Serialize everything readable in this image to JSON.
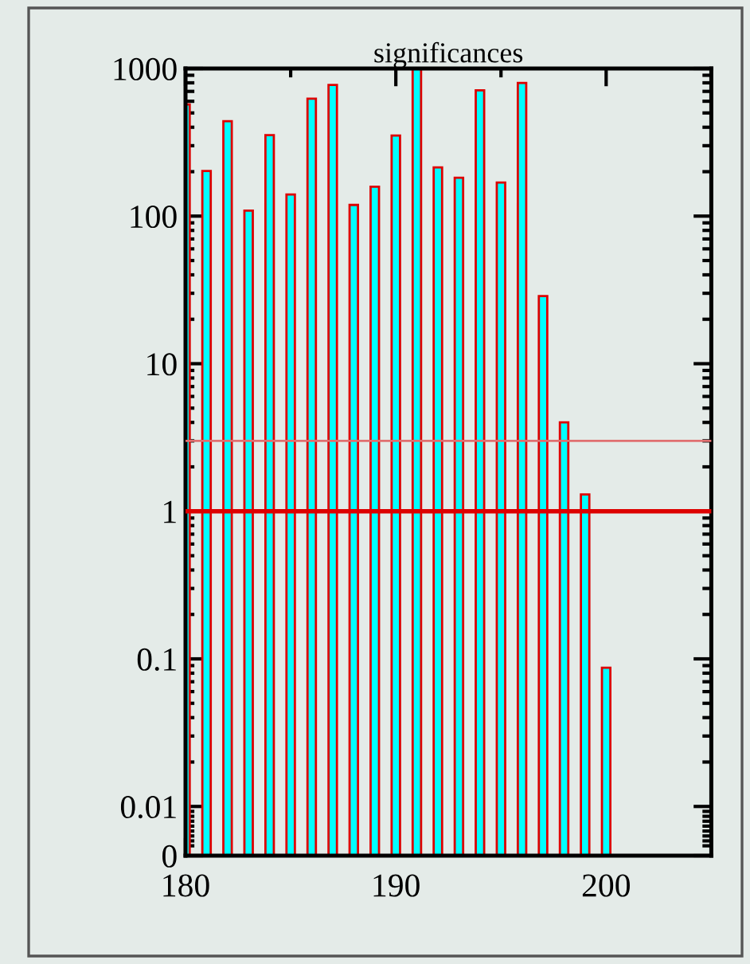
{
  "chart_data": {
    "type": "bar",
    "title": "significances",
    "x": [
      180,
      181,
      182,
      183,
      184,
      185,
      186,
      187,
      188,
      189,
      190,
      191,
      192,
      193,
      194,
      195,
      196,
      197,
      198,
      199,
      200
    ],
    "series": [
      {
        "color": "#00ffff",
        "values": [
          570,
          202,
          440,
          109,
          354,
          140,
          624,
          774,
          119,
          158,
          351,
          1000,
          214,
          182,
          711,
          169,
          798,
          28.7,
          4.0,
          1.3,
          0.087
        ]
      }
    ],
    "ref_lines": [
      {
        "axis": "y",
        "value": 3,
        "color": "#e07070"
      },
      {
        "axis": "y",
        "value": 1,
        "color": "#dd0000"
      }
    ],
    "log": "y",
    "xlim": [
      180,
      205
    ],
    "xticks": [
      180,
      190,
      200
    ],
    "ylim": [
      0,
      1000
    ],
    "yticks": [
      0,
      0.01,
      0.1,
      1,
      10,
      100,
      1000
    ],
    "grid": false,
    "legend": false
  }
}
